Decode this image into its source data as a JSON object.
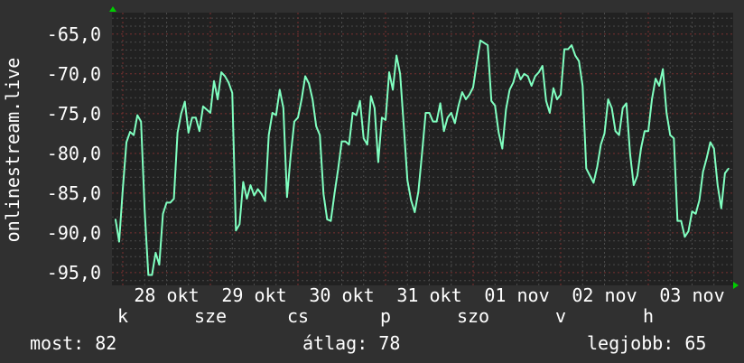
{
  "chart_data": {
    "type": "line",
    "ylabel": "onlinestream.live",
    "ylim": [
      -96.6,
      -62.3
    ],
    "yticks": [
      "-65,0",
      "-70,0",
      "-75,0",
      "-80,0",
      "-85,0",
      "-90,0",
      "-95,0"
    ],
    "ytick_values": [
      -65,
      -70,
      -75,
      -80,
      -85,
      -90,
      -95
    ],
    "xtick_labels": [
      "k",
      "28 okt",
      "sze",
      "29 okt",
      "cs",
      "30 okt",
      "p",
      "31 okt",
      "szo",
      "01 nov",
      "v",
      "02 nov",
      "h",
      "03 nov"
    ],
    "grid": true,
    "line_color": "#80ffc0",
    "major_grid_color": "#7a3030",
    "series": [
      {
        "date": "10-27",
        "start_hour": 22,
        "values": [
          -88.3,
          -91.1
        ]
      },
      {
        "date": "10-28",
        "start_hour": 0,
        "values": [
          -84.5,
          -78.6,
          -77.3,
          -77.7,
          -75.2,
          -76.0,
          -87.2,
          -95.3,
          -95.3,
          -92.5,
          -94.0,
          -87.6,
          -86.2,
          -86.2,
          -85.7,
          -77.4,
          -75.0,
          -73.5,
          -77.4,
          -75.5,
          -75.5,
          -77.2,
          -74.1,
          -74.5
        ]
      },
      {
        "date": "10-29",
        "start_hour": 0,
        "values": [
          -74.9,
          -70.9,
          -73.2,
          -69.8,
          -70.3,
          -71.1,
          -72.4,
          -89.7,
          -88.9,
          -83.6,
          -85.7,
          -84.0,
          -85.3,
          -84.5,
          -85.1,
          -86.0,
          -77.7,
          -74.9,
          -75.2,
          -72.0,
          -74.3,
          -85.5,
          -80.3,
          -76.0
        ]
      },
      {
        "date": "10-30",
        "start_hour": 0,
        "values": [
          -75.5,
          -73.2,
          -70.3,
          -71.2,
          -73.2,
          -76.6,
          -77.7,
          -85.1,
          -88.3,
          -88.5,
          -85.1,
          -82.0,
          -78.5,
          -78.5,
          -78.9,
          -74.9,
          -75.2,
          -73.4,
          -78.1,
          -78.9,
          -72.8,
          -74.3,
          -81.1,
          -75.5
        ]
      },
      {
        "date": "10-31",
        "start_hour": 0,
        "values": [
          -75.8,
          -69.8,
          -72.0,
          -67.7,
          -70.0,
          -76.6,
          -83.4,
          -85.9,
          -87.4,
          -84.8,
          -80.0,
          -74.9,
          -74.9,
          -76.0,
          -76.0,
          -73.7,
          -77.2,
          -75.5,
          -74.9,
          -76.2,
          -74.0,
          -72.3,
          -73.2,
          -72.6
        ]
      },
      {
        "date": "11-01",
        "start_hour": 0,
        "values": [
          -71.7,
          -68.6,
          -65.8,
          -66.1,
          -66.4,
          -73.4,
          -74.0,
          -77.4,
          -79.4,
          -74.5,
          -72.0,
          -71.1,
          -69.4,
          -70.7,
          -70.0,
          -70.3,
          -71.5,
          -70.3,
          -69.8,
          -69.0,
          -73.4,
          -74.9,
          -71.8,
          -73.2
        ]
      },
      {
        "date": "11-02",
        "start_hour": 0,
        "values": [
          -72.6,
          -66.9,
          -66.9,
          -66.4,
          -67.7,
          -68.4,
          -71.5,
          -81.9,
          -82.8,
          -83.7,
          -81.7,
          -78.9,
          -77.5,
          -73.2,
          -74.3,
          -77.2,
          -77.7,
          -74.3,
          -73.7,
          -80.0,
          -84.0,
          -82.8,
          -79.4,
          -77.2
        ]
      },
      {
        "date": "11-03",
        "start_hour": 0,
        "values": [
          -77.2,
          -73.2,
          -70.6,
          -71.5,
          -69.4,
          -74.9,
          -77.7,
          -78.1,
          -88.5,
          -88.5,
          -90.5,
          -89.8,
          -87.3,
          -87.6,
          -85.9,
          -82.3,
          -80.6,
          -78.6,
          -79.4,
          -84.0,
          -86.9,
          -82.5,
          -81.9
        ]
      }
    ]
  },
  "legend": {
    "current": "most: 82",
    "average": "átlag: 78",
    "best": "legjobb: 65"
  }
}
